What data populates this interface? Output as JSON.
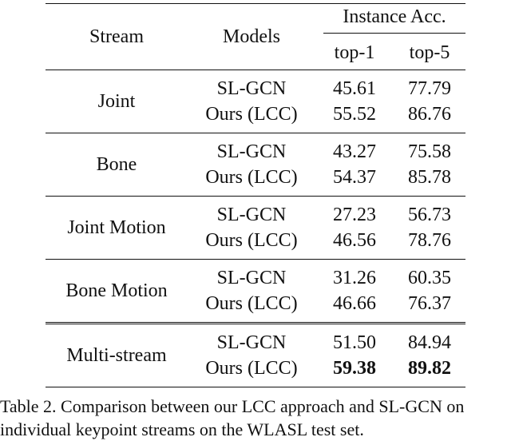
{
  "table": {
    "headers": {
      "stream": "Stream",
      "models": "Models",
      "instance_acc": "Instance Acc.",
      "top1": "top-1",
      "top5": "top-5"
    },
    "rows": [
      {
        "stream": "Joint",
        "models": [
          "SL-GCN",
          "Ours (LCC)"
        ],
        "top1": [
          "45.61",
          "55.52"
        ],
        "top5": [
          "77.79",
          "86.76"
        ]
      },
      {
        "stream": "Bone",
        "models": [
          "SL-GCN",
          "Ours (LCC)"
        ],
        "top1": [
          "43.27",
          "54.37"
        ],
        "top5": [
          "75.58",
          "85.78"
        ]
      },
      {
        "stream": "Joint Motion",
        "models": [
          "SL-GCN",
          "Ours (LCC)"
        ],
        "top1": [
          "27.23",
          "46.56"
        ],
        "top5": [
          "56.73",
          "78.76"
        ]
      },
      {
        "stream": "Bone Motion",
        "models": [
          "SL-GCN",
          "Ours (LCC)"
        ],
        "top1": [
          "31.26",
          "46.66"
        ],
        "top5": [
          "60.35",
          "76.37"
        ]
      },
      {
        "stream": "Multi-stream",
        "models": [
          "SL-GCN",
          "Ours (LCC)"
        ],
        "top1": [
          "51.50",
          "59.38"
        ],
        "top5": [
          "84.94",
          "89.82"
        ]
      }
    ]
  },
  "caption": {
    "line1": "Table 2. Comparison between our LCC approach and SL-GCN on",
    "line2": "individual keypoint streams on the WLASL test set."
  }
}
